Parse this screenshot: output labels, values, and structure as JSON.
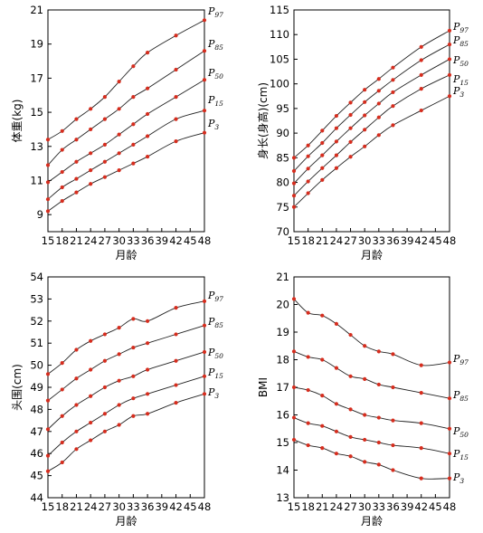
{
  "chart_data": [
    {
      "type": "line",
      "xlabel": "月龄",
      "ylabel": "体重(kg)",
      "x": [
        15,
        18,
        21,
        24,
        27,
        30,
        33,
        36,
        42,
        48
      ],
      "xticks": [
        15,
        18,
        21,
        24,
        27,
        30,
        33,
        36,
        39,
        42,
        45,
        48
      ],
      "ylim": [
        8,
        21
      ],
      "yticks": [
        9,
        11,
        13,
        15,
        17,
        19,
        21
      ],
      "series": [
        {
          "name": "P97",
          "values": [
            13.4,
            13.9,
            14.6,
            15.2,
            15.9,
            16.8,
            17.7,
            18.5,
            19.5,
            20.4
          ]
        },
        {
          "name": "P85",
          "values": [
            11.9,
            12.8,
            13.4,
            14.0,
            14.6,
            15.2,
            15.9,
            16.4,
            17.5,
            18.6
          ]
        },
        {
          "name": "P50",
          "values": [
            10.9,
            11.5,
            12.1,
            12.6,
            13.1,
            13.7,
            14.3,
            14.9,
            15.9,
            16.9
          ]
        },
        {
          "name": "P15",
          "values": [
            9.9,
            10.6,
            11.1,
            11.6,
            12.1,
            12.6,
            13.1,
            13.6,
            14.6,
            15.1
          ]
        },
        {
          "name": "P3",
          "values": [
            9.2,
            9.8,
            10.3,
            10.8,
            11.2,
            11.6,
            12.0,
            12.4,
            13.3,
            13.8
          ]
        }
      ]
    },
    {
      "type": "line",
      "xlabel": "月龄",
      "ylabel": "身长(身高)(cm)",
      "x": [
        15,
        18,
        21,
        24,
        27,
        30,
        33,
        36,
        42,
        48
      ],
      "xticks": [
        15,
        18,
        21,
        24,
        27,
        30,
        33,
        36,
        39,
        42,
        45,
        48
      ],
      "ylim": [
        70,
        115
      ],
      "yticks": [
        70,
        75,
        80,
        85,
        90,
        95,
        100,
        105,
        110,
        115
      ],
      "series": [
        {
          "name": "P97",
          "values": [
            85.0,
            87.5,
            90.5,
            93.5,
            96.2,
            98.8,
            101.0,
            103.3,
            107.5,
            110.8
          ]
        },
        {
          "name": "P85",
          "values": [
            82.3,
            85.3,
            88.0,
            91.0,
            93.7,
            96.3,
            98.6,
            100.8,
            104.8,
            108.0
          ]
        },
        {
          "name": "P50",
          "values": [
            79.8,
            82.8,
            85.5,
            88.3,
            91.0,
            93.6,
            96.0,
            98.3,
            101.8,
            105.0
          ]
        },
        {
          "name": "P15",
          "values": [
            77.3,
            80.2,
            82.9,
            85.5,
            88.2,
            90.7,
            93.2,
            95.5,
            99.0,
            101.8
          ]
        },
        {
          "name": "P3",
          "values": [
            75.0,
            77.8,
            80.5,
            82.9,
            85.2,
            87.3,
            89.6,
            91.6,
            94.6,
            97.5
          ]
        }
      ]
    },
    {
      "type": "line",
      "xlabel": "月龄",
      "ylabel": "头围(cm)",
      "x": [
        15,
        18,
        21,
        24,
        27,
        30,
        33,
        36,
        42,
        48
      ],
      "xticks": [
        15,
        18,
        21,
        24,
        27,
        30,
        33,
        36,
        39,
        42,
        45,
        48
      ],
      "ylim": [
        44,
        54
      ],
      "yticks": [
        44,
        45,
        46,
        47,
        48,
        49,
        50,
        51,
        52,
        53,
        54
      ],
      "series": [
        {
          "name": "P97",
          "values": [
            49.6,
            50.1,
            50.7,
            51.1,
            51.4,
            51.7,
            52.1,
            52.0,
            52.6,
            52.9
          ]
        },
        {
          "name": "P85",
          "values": [
            48.4,
            48.9,
            49.4,
            49.8,
            50.2,
            50.5,
            50.8,
            51.0,
            51.4,
            51.8
          ]
        },
        {
          "name": "P50",
          "values": [
            47.1,
            47.7,
            48.2,
            48.6,
            49.0,
            49.3,
            49.5,
            49.8,
            50.2,
            50.6
          ]
        },
        {
          "name": "P15",
          "values": [
            45.9,
            46.5,
            47.0,
            47.4,
            47.8,
            48.2,
            48.5,
            48.7,
            49.1,
            49.5
          ]
        },
        {
          "name": "P3",
          "values": [
            45.2,
            45.6,
            46.2,
            46.6,
            47.0,
            47.3,
            47.7,
            47.8,
            48.3,
            48.7
          ]
        }
      ]
    },
    {
      "type": "line",
      "xlabel": "月龄",
      "ylabel": "BMI",
      "x": [
        15,
        18,
        21,
        24,
        27,
        30,
        33,
        36,
        42,
        48
      ],
      "xticks": [
        15,
        18,
        21,
        24,
        27,
        30,
        33,
        36,
        39,
        42,
        45,
        48
      ],
      "ylim": [
        13,
        21
      ],
      "yticks": [
        13,
        14,
        15,
        16,
        17,
        18,
        19,
        20,
        21
      ],
      "series": [
        {
          "name": "P97",
          "values": [
            20.2,
            19.7,
            19.6,
            19.3,
            18.9,
            18.5,
            18.3,
            18.2,
            17.8,
            17.9
          ]
        },
        {
          "name": "P85",
          "values": [
            18.3,
            18.1,
            18.0,
            17.7,
            17.4,
            17.3,
            17.1,
            17.0,
            16.8,
            16.6
          ]
        },
        {
          "name": "P50",
          "values": [
            17.0,
            16.9,
            16.7,
            16.4,
            16.2,
            16.0,
            15.9,
            15.8,
            15.7,
            15.5
          ]
        },
        {
          "name": "P15",
          "values": [
            15.9,
            15.7,
            15.6,
            15.4,
            15.2,
            15.1,
            15.0,
            14.9,
            14.8,
            14.6
          ]
        },
        {
          "name": "P3",
          "values": [
            15.1,
            14.9,
            14.8,
            14.6,
            14.5,
            14.3,
            14.2,
            14.0,
            13.7,
            13.7
          ]
        }
      ]
    }
  ]
}
